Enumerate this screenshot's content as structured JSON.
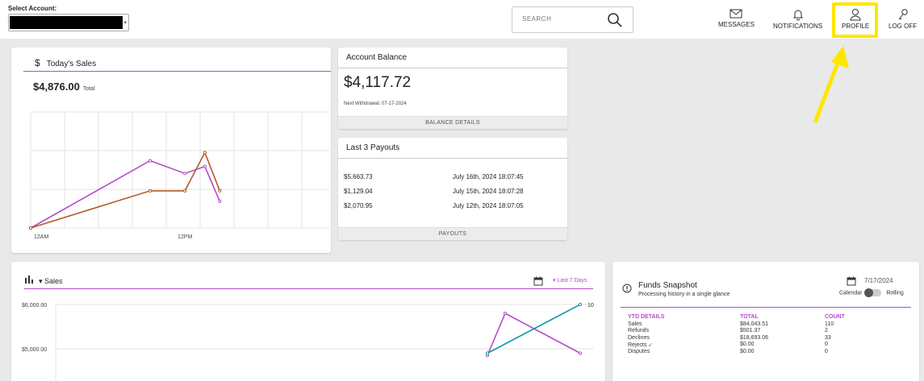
{
  "header": {
    "select_account_label": "Select Account:",
    "search_placeholder": "SEARCH",
    "nav": [
      {
        "label": "MESSAGES",
        "icon": "envelope-icon"
      },
      {
        "label": "NOTIFICATIONS",
        "icon": "bell-icon"
      },
      {
        "label": "PROFILE",
        "icon": "user-icon"
      },
      {
        "label": "LOG OFF",
        "icon": "key-icon"
      }
    ]
  },
  "annotation": {
    "highlight_color": "#ffe600"
  },
  "todays_sales": {
    "title": "Today's Sales",
    "total_amount": "$4,876.00",
    "total_label": "Total",
    "chart_data": {
      "type": "line",
      "x_ticks": [
        "12AM",
        "12PM"
      ],
      "series": [
        {
          "color": "#b44cc9",
          "values": [
            [
              0,
              0
            ],
            [
              12,
              0.58
            ],
            [
              15.5,
              0.47
            ],
            [
              17.5,
              0.53
            ],
            [
              19,
              0.23
            ]
          ]
        },
        {
          "color": "#b35a2b",
          "values": [
            [
              0,
              0
            ],
            [
              12,
              0.32
            ],
            [
              15.5,
              0.32
            ],
            [
              17.5,
              0.65
            ],
            [
              19,
              0.32
            ]
          ]
        }
      ]
    }
  },
  "account_balance": {
    "title": "Account Balance",
    "amount": "$4,117.72",
    "next_withdrawal": "Next Withdrawal: 07-17-2024",
    "footer_button": "BALANCE DETAILS"
  },
  "last_payouts": {
    "title": "Last 3 Payouts",
    "rows": [
      {
        "amount": "$5,663.73",
        "date": "July 16th, 2024 18:07:45"
      },
      {
        "amount": "$1,129.04",
        "date": "July 15th, 2024 18:07:28"
      },
      {
        "amount": "$2,070.95",
        "date": "July 12th, 2024 18:07:05"
      }
    ],
    "footer_button": "PAYOUTS"
  },
  "sales": {
    "title": "Sales",
    "range": "Last 7 Days",
    "chart_data": {
      "type": "line",
      "y_ticks": [
        "$6,000.00",
        "$5,000.00"
      ],
      "point_label": "10",
      "series": [
        {
          "color": "#b44cc9",
          "values": [
            [
              0,
              4850
            ],
            [
              1,
              5800
            ],
            [
              2,
              4900
            ]
          ]
        },
        {
          "color": "#0c9aa6",
          "values": [
            [
              0,
              4900
            ],
            [
              2,
              6000
            ]
          ]
        }
      ]
    }
  },
  "funds_snapshot": {
    "title": "Funds Snapshot",
    "subtitle": "Processing history in a single glance",
    "date": "7/17/2024",
    "toggle_left": "Calendar",
    "toggle_right": "Rolling",
    "headers": [
      "YTD DETAILS",
      "TOTAL",
      "COUNT"
    ],
    "rows": [
      {
        "label": "Sales",
        "total": "$84,043.51",
        "count": "110"
      },
      {
        "label": "Refunds",
        "total": "$501.37",
        "count": "2"
      },
      {
        "label": "Declines",
        "total": "$18,693.06",
        "count": "33"
      },
      {
        "label": "Rejects",
        "total": "$0.00",
        "count": "0"
      },
      {
        "label": "Disputes",
        "total": "$0.00",
        "count": "0"
      }
    ]
  }
}
